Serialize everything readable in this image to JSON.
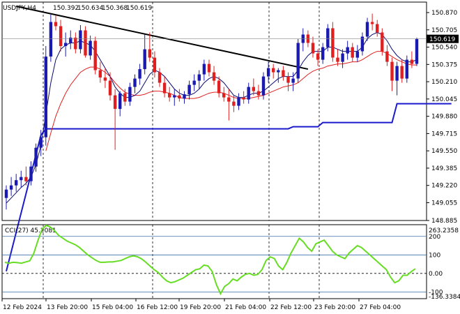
{
  "header": {
    "symbol": "USDJPY,H4",
    "open": "150.392",
    "high": "150.634",
    "low": "150.368",
    "close": "150.619"
  },
  "colors": {
    "bull": "#1a1ab0",
    "bear": "#e02020",
    "ma_fast": "#0a0a70",
    "ma_slow": "#e02020",
    "support": "#1a1acc",
    "trend": "#000000",
    "cci": "#66dd22",
    "price_tag_bg": "#000000"
  },
  "chart_data": [
    {
      "type": "candlestick",
      "title": "",
      "price_tag": "150.619",
      "price_tag_value": 150.619,
      "y_ticks": [
        "150.870",
        "150.705",
        "150.540",
        "150.375",
        "150.210",
        "150.045",
        "149.880",
        "149.715",
        "149.550",
        "149.385",
        "149.220",
        "149.055",
        "148.885"
      ],
      "y_tick_values": [
        150.87,
        150.705,
        150.54,
        150.375,
        150.21,
        150.045,
        149.88,
        149.715,
        149.55,
        149.385,
        149.22,
        149.055,
        148.885
      ],
      "ylim": [
        148.885,
        150.97
      ],
      "x_labels": [
        "12 Feb 2024",
        "13 Feb 20:00",
        "15 Feb 04:00",
        "16 Feb 12:00",
        "19 Feb 20:00",
        "21 Feb 04:00",
        "22 Feb 12:00",
        "23 Feb 20:00",
        "27 Feb 04:00"
      ],
      "candles": [
        {
          "o": 149.1,
          "h": 149.22,
          "l": 148.99,
          "c": 149.18
        },
        {
          "o": 149.18,
          "h": 149.3,
          "l": 149.12,
          "c": 149.22
        },
        {
          "o": 149.22,
          "h": 149.33,
          "l": 149.16,
          "c": 149.27
        },
        {
          "o": 149.27,
          "h": 149.36,
          "l": 149.2,
          "c": 149.3
        },
        {
          "o": 149.3,
          "h": 149.4,
          "l": 149.22,
          "c": 149.26
        },
        {
          "o": 149.26,
          "h": 149.45,
          "l": 149.22,
          "c": 149.4
        },
        {
          "o": 149.4,
          "h": 149.62,
          "l": 149.35,
          "c": 149.58
        },
        {
          "o": 149.58,
          "h": 149.75,
          "l": 149.5,
          "c": 149.68
        },
        {
          "o": 149.68,
          "h": 150.55,
          "l": 149.6,
          "c": 150.45
        },
        {
          "o": 150.45,
          "h": 150.85,
          "l": 150.4,
          "c": 150.78
        },
        {
          "o": 150.78,
          "h": 150.84,
          "l": 150.7,
          "c": 150.74
        },
        {
          "o": 150.74,
          "h": 150.8,
          "l": 150.5,
          "c": 150.55
        },
        {
          "o": 150.55,
          "h": 150.68,
          "l": 150.45,
          "c": 150.58
        },
        {
          "o": 150.58,
          "h": 150.7,
          "l": 150.52,
          "c": 150.63
        },
        {
          "o": 150.63,
          "h": 150.68,
          "l": 150.48,
          "c": 150.52
        },
        {
          "o": 150.52,
          "h": 150.75,
          "l": 150.48,
          "c": 150.7
        },
        {
          "o": 150.7,
          "h": 150.74,
          "l": 150.44,
          "c": 150.46
        },
        {
          "o": 150.46,
          "h": 150.65,
          "l": 150.42,
          "c": 150.6
        },
        {
          "o": 150.6,
          "h": 150.64,
          "l": 150.28,
          "c": 150.32
        },
        {
          "o": 150.32,
          "h": 150.4,
          "l": 150.2,
          "c": 150.25
        },
        {
          "o": 150.25,
          "h": 150.34,
          "l": 150.15,
          "c": 150.22
        },
        {
          "o": 150.22,
          "h": 150.3,
          "l": 150.03,
          "c": 150.08
        },
        {
          "o": 150.08,
          "h": 150.14,
          "l": 149.56,
          "c": 149.95
        },
        {
          "o": 149.95,
          "h": 150.12,
          "l": 149.88,
          "c": 150.1
        },
        {
          "o": 150.1,
          "h": 150.14,
          "l": 149.98,
          "c": 150.02
        },
        {
          "o": 150.02,
          "h": 150.2,
          "l": 149.98,
          "c": 150.16
        },
        {
          "o": 150.16,
          "h": 150.28,
          "l": 150.1,
          "c": 150.24
        },
        {
          "o": 150.24,
          "h": 150.38,
          "l": 150.18,
          "c": 150.33
        },
        {
          "o": 150.33,
          "h": 150.66,
          "l": 150.28,
          "c": 150.52
        },
        {
          "o": 150.52,
          "h": 150.68,
          "l": 150.4,
          "c": 150.44
        },
        {
          "o": 150.44,
          "h": 150.5,
          "l": 150.25,
          "c": 150.3
        },
        {
          "o": 150.3,
          "h": 150.34,
          "l": 150.16,
          "c": 150.2
        },
        {
          "o": 150.2,
          "h": 150.26,
          "l": 150.06,
          "c": 150.1
        },
        {
          "o": 150.1,
          "h": 150.16,
          "l": 150.02,
          "c": 150.06
        },
        {
          "o": 150.06,
          "h": 150.14,
          "l": 149.98,
          "c": 150.08
        },
        {
          "o": 150.08,
          "h": 150.14,
          "l": 150.02,
          "c": 150.05
        },
        {
          "o": 150.05,
          "h": 150.12,
          "l": 150.0,
          "c": 150.09
        },
        {
          "o": 150.09,
          "h": 150.22,
          "l": 150.04,
          "c": 150.18
        },
        {
          "o": 150.18,
          "h": 150.28,
          "l": 150.12,
          "c": 150.22
        },
        {
          "o": 150.22,
          "h": 150.32,
          "l": 150.14,
          "c": 150.28
        },
        {
          "o": 150.28,
          "h": 150.42,
          "l": 150.22,
          "c": 150.38
        },
        {
          "o": 150.38,
          "h": 150.42,
          "l": 150.26,
          "c": 150.3
        },
        {
          "o": 150.3,
          "h": 150.36,
          "l": 150.18,
          "c": 150.22
        },
        {
          "o": 150.22,
          "h": 150.26,
          "l": 150.06,
          "c": 150.1
        },
        {
          "o": 150.1,
          "h": 150.16,
          "l": 150.02,
          "c": 150.06
        },
        {
          "o": 150.06,
          "h": 150.14,
          "l": 149.84,
          "c": 150.02
        },
        {
          "o": 150.02,
          "h": 150.08,
          "l": 149.92,
          "c": 149.98
        },
        {
          "o": 149.98,
          "h": 150.1,
          "l": 149.94,
          "c": 150.06
        },
        {
          "o": 150.06,
          "h": 150.12,
          "l": 150.0,
          "c": 150.04
        },
        {
          "o": 150.04,
          "h": 150.2,
          "l": 150.0,
          "c": 150.16
        },
        {
          "o": 150.16,
          "h": 150.24,
          "l": 150.08,
          "c": 150.12
        },
        {
          "o": 150.12,
          "h": 150.18,
          "l": 150.04,
          "c": 150.08
        },
        {
          "o": 150.08,
          "h": 150.3,
          "l": 150.04,
          "c": 150.26
        },
        {
          "o": 150.26,
          "h": 150.4,
          "l": 150.2,
          "c": 150.34
        },
        {
          "o": 150.34,
          "h": 150.38,
          "l": 150.24,
          "c": 150.3
        },
        {
          "o": 150.3,
          "h": 150.34,
          "l": 150.2,
          "c": 150.32
        },
        {
          "o": 150.32,
          "h": 150.36,
          "l": 150.22,
          "c": 150.26
        },
        {
          "o": 150.26,
          "h": 150.3,
          "l": 150.12,
          "c": 150.2
        },
        {
          "o": 150.2,
          "h": 150.3,
          "l": 150.12,
          "c": 150.24
        },
        {
          "o": 150.24,
          "h": 150.62,
          "l": 150.2,
          "c": 150.58
        },
        {
          "o": 150.58,
          "h": 150.72,
          "l": 150.5,
          "c": 150.66
        },
        {
          "o": 150.66,
          "h": 150.7,
          "l": 150.54,
          "c": 150.58
        },
        {
          "o": 150.58,
          "h": 150.64,
          "l": 150.44,
          "c": 150.48
        },
        {
          "o": 150.48,
          "h": 150.52,
          "l": 150.36,
          "c": 150.42
        },
        {
          "o": 150.42,
          "h": 150.58,
          "l": 150.38,
          "c": 150.54
        },
        {
          "o": 150.54,
          "h": 150.76,
          "l": 150.5,
          "c": 150.72
        },
        {
          "o": 150.72,
          "h": 150.78,
          "l": 150.4,
          "c": 150.44
        },
        {
          "o": 150.44,
          "h": 150.52,
          "l": 150.36,
          "c": 150.4
        },
        {
          "o": 150.4,
          "h": 150.52,
          "l": 150.34,
          "c": 150.48
        },
        {
          "o": 150.48,
          "h": 150.6,
          "l": 150.42,
          "c": 150.54
        },
        {
          "o": 150.54,
          "h": 150.58,
          "l": 150.4,
          "c": 150.44
        },
        {
          "o": 150.44,
          "h": 150.56,
          "l": 150.4,
          "c": 150.5
        },
        {
          "o": 150.5,
          "h": 150.68,
          "l": 150.46,
          "c": 150.64
        },
        {
          "o": 150.64,
          "h": 150.82,
          "l": 150.6,
          "c": 150.78
        },
        {
          "o": 150.78,
          "h": 150.86,
          "l": 150.7,
          "c": 150.76
        },
        {
          "o": 150.76,
          "h": 150.8,
          "l": 150.64,
          "c": 150.68
        },
        {
          "o": 150.68,
          "h": 150.72,
          "l": 150.46,
          "c": 150.5
        },
        {
          "o": 150.5,
          "h": 150.56,
          "l": 150.36,
          "c": 150.4
        },
        {
          "o": 150.4,
          "h": 150.44,
          "l": 150.12,
          "c": 150.22
        },
        {
          "o": 150.22,
          "h": 150.4,
          "l": 150.08,
          "c": 150.36
        },
        {
          "o": 150.36,
          "h": 150.42,
          "l": 150.2,
          "c": 150.24
        },
        {
          "o": 150.24,
          "h": 150.46,
          "l": 150.2,
          "c": 150.42
        },
        {
          "o": 150.42,
          "h": 150.5,
          "l": 150.34,
          "c": 150.38
        },
        {
          "o": 150.38,
          "h": 150.63,
          "l": 150.36,
          "c": 150.62
        }
      ],
      "ma_fast": [
        149.05,
        149.1,
        149.15,
        149.2,
        149.24,
        149.3,
        149.42,
        149.6,
        149.9,
        150.2,
        150.42,
        150.52,
        150.56,
        150.58,
        150.58,
        150.6,
        150.58,
        150.56,
        150.5,
        150.42,
        150.34,
        150.26,
        150.16,
        150.1,
        150.06,
        150.06,
        150.08,
        150.12,
        150.2,
        150.28,
        150.32,
        150.3,
        150.26,
        150.2,
        150.14,
        150.1,
        150.08,
        150.08,
        150.1,
        150.14,
        150.2,
        150.24,
        150.26,
        150.24,
        150.2,
        150.14,
        150.08,
        150.06,
        150.06,
        150.08,
        150.1,
        150.1,
        150.12,
        150.16,
        150.2,
        150.24,
        150.26,
        150.26,
        150.26,
        150.32,
        150.4,
        150.46,
        150.5,
        150.5,
        150.5,
        150.54,
        150.54,
        150.52,
        150.5,
        150.5,
        150.5,
        150.5,
        150.54,
        150.62,
        150.66,
        150.68,
        150.66,
        150.6,
        150.52,
        150.46,
        150.42,
        150.4,
        150.4,
        150.42
      ],
      "ma_slow": [
        null,
        null,
        null,
        null,
        null,
        null,
        null,
        null,
        149.55,
        149.72,
        149.88,
        150.0,
        150.1,
        150.18,
        150.24,
        150.3,
        150.33,
        150.35,
        150.35,
        150.33,
        150.3,
        150.26,
        150.2,
        150.15,
        150.11,
        150.09,
        150.08,
        150.08,
        150.09,
        150.11,
        150.12,
        150.12,
        150.11,
        150.1,
        150.08,
        150.06,
        150.05,
        150.05,
        150.05,
        150.06,
        150.08,
        150.1,
        150.11,
        150.11,
        150.1,
        150.08,
        150.06,
        150.05,
        150.05,
        150.05,
        150.06,
        150.07,
        150.08,
        150.1,
        150.12,
        150.14,
        150.16,
        150.17,
        150.18,
        150.2,
        150.24,
        150.28,
        150.31,
        150.33,
        150.34,
        150.36,
        150.37,
        150.38,
        150.38,
        150.39,
        150.4,
        150.4,
        150.42,
        150.45,
        150.48,
        150.5,
        150.5,
        150.48,
        150.45,
        150.42,
        150.4,
        150.38,
        150.37,
        150.37
      ],
      "support": [
        {
          "i": 0,
          "v": 148.4
        },
        {
          "i": 7,
          "v": 149.7
        },
        {
          "i": 8,
          "v": 149.76
        },
        {
          "i": 50,
          "v": 149.76
        },
        {
          "i": 57,
          "v": 149.76
        },
        {
          "i": 58,
          "v": 149.78
        },
        {
          "i": 63,
          "v": 149.78
        },
        {
          "i": 64,
          "v": 149.82
        },
        {
          "i": 78,
          "v": 149.82
        },
        {
          "i": 79,
          "v": 150.0
        },
        {
          "i": 90,
          "v": 150.0
        }
      ],
      "trendline": [
        {
          "i": 2,
          "v": 150.93
        },
        {
          "i": 61,
          "v": 150.33
        }
      ],
      "cci": {
        "label": "CCI(27) 45.2081",
        "y_ticks": [
          "263.2358",
          "200",
          "100",
          "0.00",
          "-100",
          "-136.3384"
        ],
        "y_tick_values": [
          263.2358,
          200,
          100,
          0,
          -100,
          -136.3384
        ],
        "levels": [
          200,
          100,
          -100
        ],
        "ylim": [
          -136.3384,
          263.2358
        ],
        "values": [
          60,
          55,
          60,
          58,
          55,
          62,
          68,
          110,
          180,
          240,
          260,
          250,
          230,
          205,
          190,
          175,
          165,
          155,
          140,
          120,
          100,
          85,
          70,
          60,
          60,
          62,
          62,
          66,
          70,
          80,
          90,
          95,
          90,
          78,
          60,
          40,
          20,
          5,
          -20,
          -40,
          -50,
          -45,
          -35,
          -25,
          -10,
          5,
          20,
          25,
          45,
          40,
          10,
          -60,
          -110,
          -70,
          -55,
          -30,
          -40,
          -20,
          -5,
          0,
          -10,
          -5,
          20,
          70,
          90,
          80,
          40,
          20,
          60,
          110,
          150,
          190,
          170,
          140,
          120,
          160,
          170,
          180,
          150,
          120,
          100,
          90,
          80,
          110,
          130,
          150,
          140,
          120,
          100,
          80,
          60,
          40,
          20,
          -20,
          -50,
          -40,
          -10,
          -10,
          10,
          25
        ]
      }
    }
  ]
}
